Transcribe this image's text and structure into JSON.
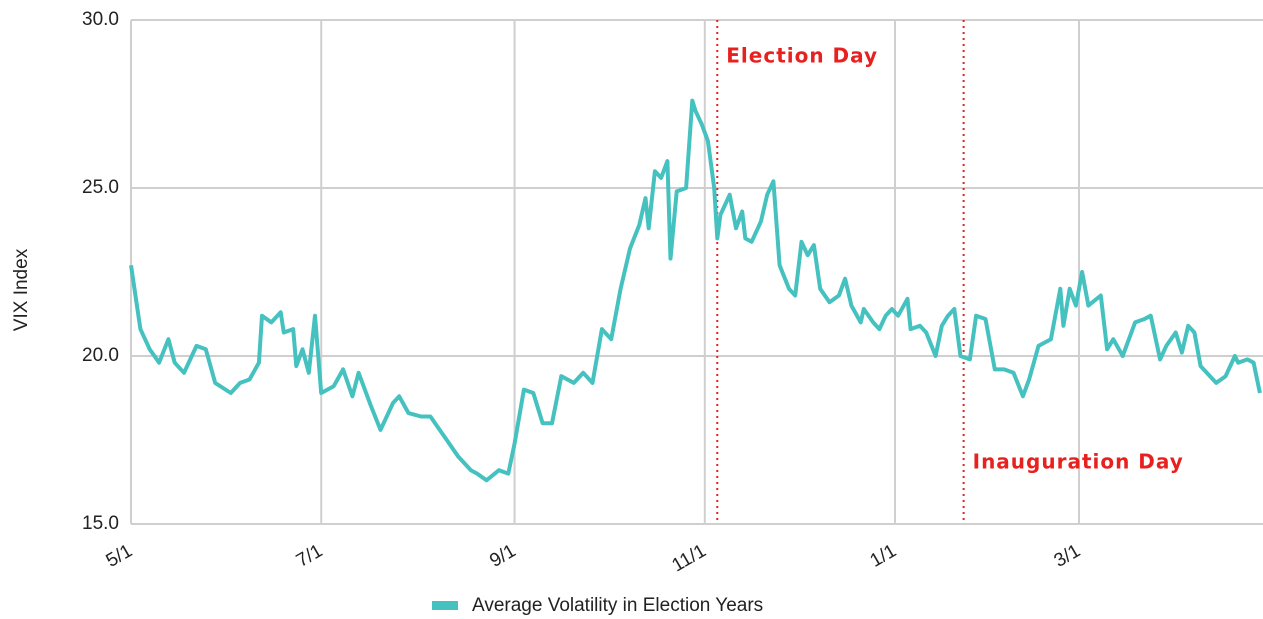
{
  "chart_data": {
    "type": "line",
    "y_label": "VIX Index",
    "x": [
      0,
      3,
      6,
      9,
      12,
      14,
      17,
      21,
      24,
      27,
      32,
      35,
      38,
      41,
      42,
      45,
      48,
      49,
      52,
      53,
      55,
      57,
      59,
      61,
      65,
      68,
      71,
      73,
      77,
      80,
      84,
      86,
      89,
      93,
      96,
      99,
      102,
      105,
      109,
      111,
      114,
      118,
      121,
      123,
      126,
      129,
      132,
      135,
      138,
      142,
      145,
      148,
      151,
      154,
      157,
      160,
      163,
      165,
      166,
      168,
      170,
      172,
      173,
      175,
      178,
      180,
      181,
      183,
      185,
      187,
      188,
      189,
      192,
      194,
      196,
      197,
      199,
      202,
      204,
      206,
      208,
      211,
      213,
      215,
      217,
      219,
      221,
      224,
      227,
      229,
      231,
      234,
      235,
      238,
      240,
      242,
      244,
      246,
      249,
      250,
      253,
      255,
      258,
      260,
      262,
      264,
      266,
      269,
      271,
      274,
      277,
      280,
      283,
      286,
      288,
      291,
      295,
      298,
      299,
      301,
      303,
      305,
      307,
      311,
      313,
      315,
      318,
      320,
      322,
      325,
      327,
      330,
      332,
      335,
      337,
      339,
      341,
      343,
      346,
      348,
      351,
      354,
      355,
      358,
      360,
      362
    ],
    "series": [
      {
        "name": "Average Volatility in Election Years",
        "color": "#45c1c0",
        "values": [
          22.7,
          20.8,
          20.2,
          19.8,
          20.5,
          19.8,
          19.5,
          20.3,
          20.2,
          19.2,
          18.9,
          19.2,
          19.3,
          19.8,
          21.2,
          21.0,
          21.3,
          20.7,
          20.8,
          19.7,
          20.2,
          19.5,
          21.2,
          18.9,
          19.1,
          19.6,
          18.8,
          19.5,
          18.5,
          17.8,
          18.6,
          18.8,
          18.3,
          18.2,
          18.2,
          17.8,
          17.4,
          17.0,
          16.6,
          16.5,
          16.3,
          16.6,
          16.5,
          17.4,
          19.0,
          18.9,
          18.0,
          18.0,
          19.4,
          19.2,
          19.5,
          19.2,
          20.8,
          20.5,
          22.0,
          23.2,
          23.9,
          24.7,
          23.8,
          25.5,
          25.3,
          25.8,
          22.9,
          24.9,
          25.0,
          27.6,
          27.3,
          26.9,
          26.4,
          25.0,
          23.5,
          24.2,
          24.8,
          23.8,
          24.3,
          23.5,
          23.4,
          24.0,
          24.8,
          25.2,
          22.7,
          22.0,
          21.8,
          23.4,
          23.0,
          23.3,
          22.0,
          21.6,
          21.8,
          22.3,
          21.5,
          21.0,
          21.4,
          21.0,
          20.8,
          21.2,
          21.4,
          21.2,
          21.7,
          20.8,
          20.9,
          20.7,
          20.0,
          20.9,
          21.2,
          21.4,
          20.0,
          19.9,
          21.2,
          21.1,
          19.6,
          19.6,
          19.5,
          18.8,
          19.3,
          20.3,
          20.5,
          22.0,
          20.9,
          22.0,
          21.5,
          22.5,
          21.5,
          21.8,
          20.2,
          20.5,
          20.0,
          20.5,
          21.0,
          21.1,
          21.2,
          19.9,
          20.3,
          20.7,
          20.1,
          20.9,
          20.7,
          19.7,
          19.4,
          19.2,
          19.4,
          20.0,
          19.8,
          19.9,
          19.8,
          18.9
        ]
      }
    ],
    "xlim": [
      0,
      363
    ],
    "xticks": [
      {
        "value": 0,
        "label": "5/1"
      },
      {
        "value": 61,
        "label": "7/1"
      },
      {
        "value": 123,
        "label": "9/1"
      },
      {
        "value": 184,
        "label": "11/1"
      },
      {
        "value": 245,
        "label": "1/1"
      },
      {
        "value": 304,
        "label": "3/1"
      }
    ],
    "ylim": [
      15,
      30
    ],
    "yticks": [
      {
        "value": 15,
        "label": "15.0"
      },
      {
        "value": 20,
        "label": "20.0"
      },
      {
        "value": 25,
        "label": "25.0"
      },
      {
        "value": 30,
        "label": "30.0"
      }
    ],
    "grid": true,
    "annotations": [
      {
        "text": "Election Day",
        "x": 188
      },
      {
        "text": "Inauguration Day",
        "x": 267
      }
    ]
  }
}
